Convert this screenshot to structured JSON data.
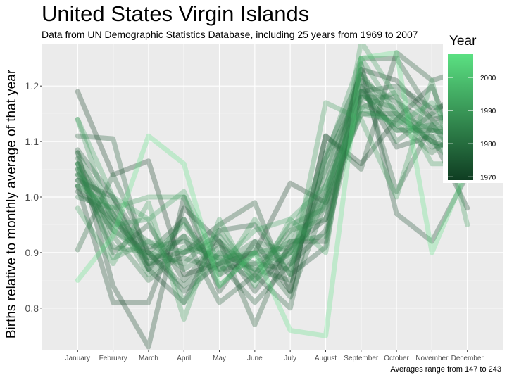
{
  "title": "United States Virgin Islands",
  "subtitle": "Data from UN Demographic Statistics Database, including 25 years from 1969 to 2007",
  "caption": "Averages range from 147 to 243",
  "colors": {
    "panel": "#ebebeb",
    "grid_major": "#ffffff",
    "grid_minor": "#f2f2f2",
    "low": "#0f3d22",
    "high": "#5be082"
  },
  "chart_data": {
    "type": "line",
    "xlabel": "",
    "ylabel": "Births relative to monthly average of that year",
    "categories": [
      "January",
      "February",
      "March",
      "April",
      "May",
      "June",
      "July",
      "August",
      "September",
      "October",
      "November",
      "December"
    ],
    "ylim": [
      0.725,
      1.275
    ],
    "yticks": [
      0.8,
      0.9,
      1.0,
      1.1,
      1.2
    ],
    "ytick_labels": [
      "0.8",
      "0.9",
      "1.0",
      "1.1",
      "1.2"
    ],
    "grid": true,
    "legend": {
      "title": "Year",
      "placement": "right",
      "range": [
        1969,
        2007
      ],
      "ticks": [
        1970,
        1980,
        1990,
        2000
      ],
      "tick_labels": [
        "1970",
        "1980",
        "1990",
        "2000"
      ]
    },
    "series": [
      {
        "year": 1969,
        "values": [
          1.19,
          1.04,
          1.065,
          0.86,
          0.88,
          0.9,
          1.025,
          0.99,
          1.23,
          1.21,
          1.14,
          1.15
        ]
      },
      {
        "year": 1970,
        "values": [
          1.08,
          0.84,
          0.73,
          1.0,
          0.83,
          0.92,
          0.83,
          1.11,
          1.06,
          1.14,
          1.2,
          1.04
        ]
      },
      {
        "year": 1971,
        "values": [
          1.02,
          0.81,
          0.81,
          0.98,
          0.92,
          0.83,
          0.91,
          0.96,
          1.2,
          1.09,
          1.11,
          0.98
        ]
      },
      {
        "year": 1972,
        "values": [
          1.03,
          1.0,
          0.87,
          0.81,
          0.94,
          0.95,
          0.86,
          0.91,
          1.24,
          0.97,
          0.92,
          1.04
        ]
      },
      {
        "year": 1973,
        "values": [
          1.01,
          0.96,
          0.89,
          0.9,
          0.95,
          0.99,
          0.83,
          1.11,
          1.05,
          1.26,
          1.21,
          1.23
        ]
      },
      {
        "year": 1974,
        "values": [
          1.05,
          0.9,
          0.95,
          0.85,
          0.92,
          0.77,
          0.92,
          0.92,
          1.25,
          1.25,
          1.15,
          1.2
        ]
      },
      {
        "year": 1975,
        "values": [
          1.085,
          1.0,
          0.9,
          0.83,
          0.88,
          0.81,
          0.88,
          0.94,
          1.19,
          1.2,
          1.16,
          1.17
        ]
      },
      {
        "year": 1976,
        "values": [
          1.11,
          1.105,
          0.87,
          0.93,
          0.81,
          0.86,
          0.8,
          1.08,
          1.22,
          1.01,
          1.13,
          1.05
        ]
      },
      {
        "year": 1977,
        "values": [
          0.905,
          1.04,
          0.9,
          0.96,
          0.86,
          0.9,
          0.82,
          0.99,
          1.15,
          1.15,
          1.1,
          1.08
        ]
      },
      {
        "year": 1978,
        "values": [
          1.02,
          0.94,
          0.9,
          0.84,
          0.9,
          0.87,
          0.85,
          1.07,
          1.19,
          1.12,
          1.12,
          1.11
        ]
      },
      {
        "year": 1979,
        "values": [
          1.06,
          0.97,
          0.88,
          0.89,
          0.87,
          0.88,
          0.87,
          1.04,
          1.21,
          1.17,
          1.13,
          1.15
        ]
      },
      {
        "year": 1980,
        "values": [
          1.04,
          0.95,
          0.91,
          0.92,
          0.89,
          0.85,
          0.9,
          1.01,
          1.18,
          1.18,
          1.09,
          1.1
        ]
      },
      {
        "year": 1981,
        "values": [
          1.07,
          0.93,
          0.85,
          0.9,
          0.92,
          0.86,
          0.94,
          0.96,
          1.17,
          1.13,
          1.08,
          1.13
        ]
      },
      {
        "year": 1982,
        "values": [
          1.0,
          0.98,
          0.87,
          0.96,
          0.84,
          0.9,
          0.88,
          1.0,
          1.23,
          1.1,
          1.15,
          1.12
        ]
      },
      {
        "year": 1983,
        "values": [
          1.08,
          0.96,
          0.92,
          0.87,
          0.91,
          0.88,
          0.92,
          0.93,
          1.18,
          1.16,
          1.12,
          1.14
        ]
      },
      {
        "year": 1984,
        "values": [
          1.04,
          0.99,
          0.88,
          0.93,
          0.88,
          0.92,
          0.9,
          1.02,
          1.2,
          1.14,
          1.1,
          1.08
        ]
      },
      {
        "year": 1985,
        "values": [
          1.06,
          0.91,
          0.9,
          0.88,
          0.94,
          0.86,
          0.95,
          0.98,
          1.16,
          1.19,
          1.14,
          1.07
        ]
      },
      {
        "year": 1986,
        "values": [
          1.03,
          0.97,
          0.86,
          0.91,
          0.89,
          0.9,
          0.91,
          1.05,
          1.22,
          1.15,
          1.12,
          1.11
        ]
      },
      {
        "year": 1987,
        "values": [
          1.05,
          0.94,
          0.89,
          0.95,
          0.87,
          0.91,
          0.89,
          0.99,
          1.19,
          1.12,
          1.13,
          1.06
        ]
      },
      {
        "year": 1988,
        "values": [
          1.06,
          0.89,
          0.92,
          0.9,
          0.93,
          0.85,
          0.93,
          1.07,
          1.25,
          1.15,
          1.1,
          1.04
        ]
      },
      {
        "year": 1989,
        "values": [
          1.14,
          0.95,
          0.96,
          0.81,
          0.9,
          0.87,
          0.9,
          1.0,
          1.15,
          1.14,
          1.11,
          1.09
        ]
      },
      {
        "year": 1990,
        "values": [
          1.02,
          0.98,
          1.0,
          1.0,
          0.86,
          0.96,
          0.86,
          1.17,
          1.14,
          1.0,
          1.21,
          0.95
        ]
      },
      {
        "year": 1991,
        "values": [
          0.98,
          0.88,
          0.99,
          0.78,
          0.96,
          0.84,
          0.96,
          0.9,
          1.28,
          1.18,
          1.06,
          1.06
        ]
      },
      {
        "year": 1992,
        "values": [
          1.14,
          1.0,
          0.96,
          1.01,
          0.88,
          0.94,
          0.96,
          1.02,
          1.16,
          1.13,
          1.17,
          1.09
        ]
      },
      {
        "year": 2007,
        "values": [
          0.85,
          0.93,
          1.11,
          1.06,
          0.84,
          0.9,
          0.76,
          0.75,
          1.25,
          1.26,
          0.9,
          1.05
        ]
      }
    ]
  }
}
